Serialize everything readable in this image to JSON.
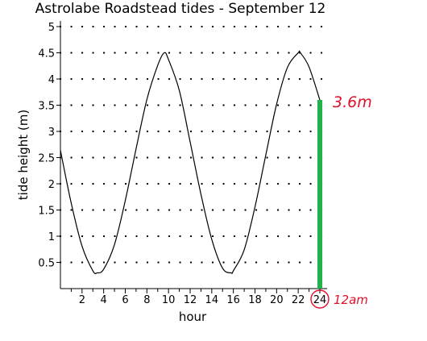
{
  "chart_data": {
    "type": "line",
    "title": "Astrolabe Roadstead tides - September 12",
    "xlabel": "hour",
    "ylabel": "tide height (m)",
    "xlim": [
      0,
      24
    ],
    "ylim": [
      0,
      5
    ],
    "x_ticks": [
      "2",
      "4",
      "6",
      "8",
      "10",
      "12",
      "14",
      "16",
      "18",
      "20",
      "22",
      "24"
    ],
    "y_ticks": [
      "0.5",
      "1",
      "1.5",
      "2",
      "2.5",
      "3",
      "3.5",
      "4",
      "4.5",
      "5"
    ],
    "grid": "dotted",
    "series": [
      {
        "color": "#000000",
        "x": [
          0,
          1,
          2,
          3,
          3.4,
          4,
          5,
          6,
          7,
          8,
          9,
          9.6,
          10,
          11,
          12,
          13,
          14,
          15,
          15.8,
          16,
          17,
          18,
          19,
          20,
          21,
          22,
          22.2,
          23,
          24
        ],
        "y": [
          2.64,
          1.63,
          0.81,
          0.34,
          0.3,
          0.37,
          0.84,
          1.68,
          2.67,
          3.61,
          4.26,
          4.5,
          4.37,
          3.78,
          2.8,
          1.8,
          0.94,
          0.39,
          0.3,
          0.34,
          0.74,
          1.56,
          2.55,
          3.52,
          4.22,
          4.5,
          4.5,
          4.23,
          3.6
        ]
      }
    ],
    "highlight": {
      "x": 24,
      "y": 3.6,
      "color": "#22b24c"
    },
    "annotations": {
      "value_label": "3.6m",
      "time_label": "12am"
    }
  }
}
